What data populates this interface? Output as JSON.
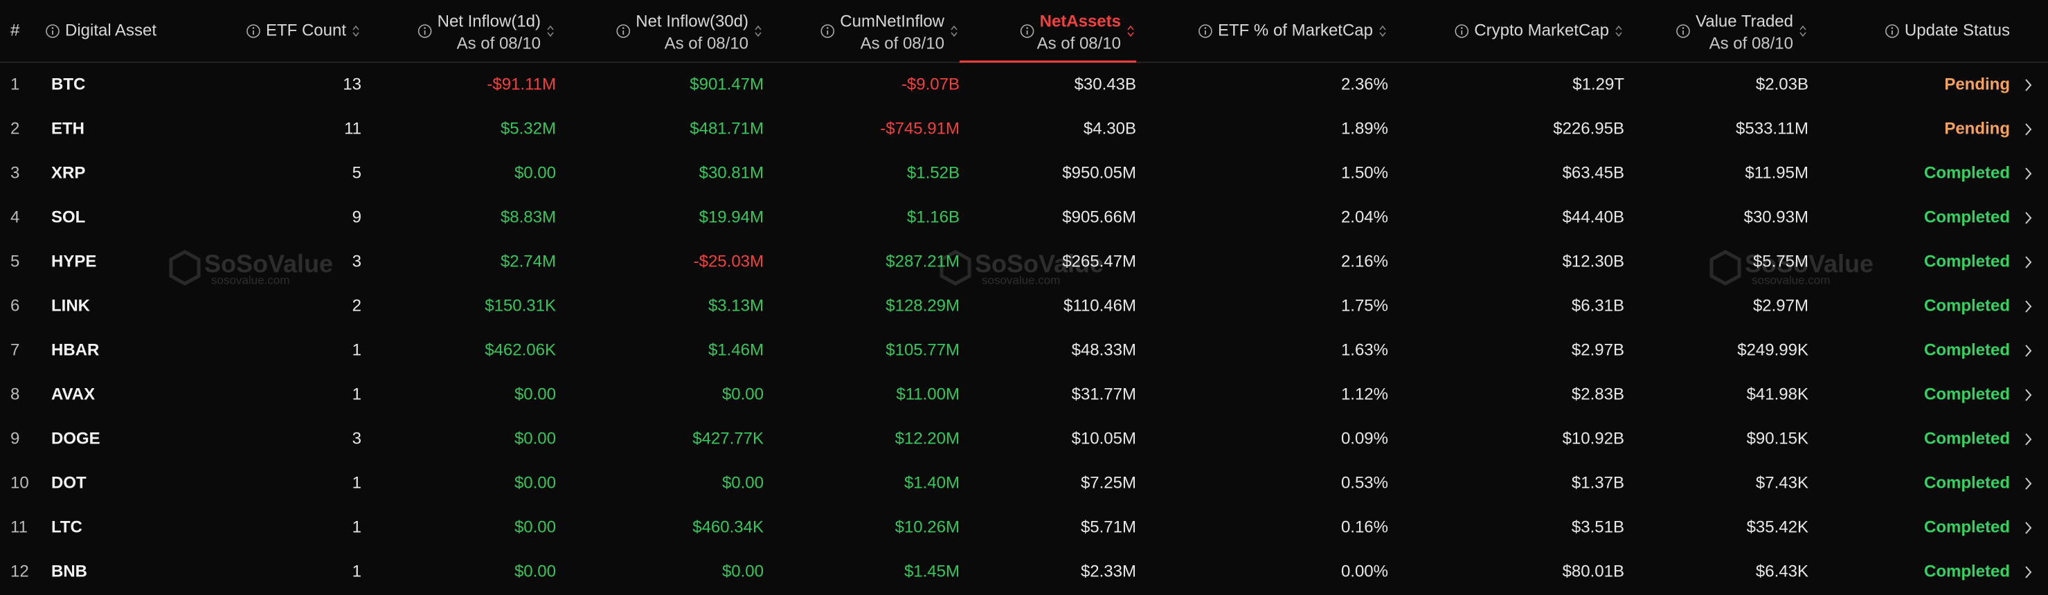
{
  "watermark": {
    "name": "SoSoValue",
    "url": "sosovalue.com"
  },
  "status_colors": {
    "Pending": "#f5a25d",
    "Completed": "#34d35f"
  },
  "table": {
    "headers": [
      {
        "title": "#"
      },
      {
        "title": "Digital Asset"
      },
      {
        "title": "ETF Count"
      },
      {
        "title": "Net Inflow(1d)",
        "subtitle": "As of 08/10"
      },
      {
        "title": "Net Inflow(30d)",
        "subtitle": "As of 08/10"
      },
      {
        "title": "CumNetInflow",
        "subtitle": "As of 08/10"
      },
      {
        "title": "NetAssets",
        "subtitle": "As of 08/10"
      },
      {
        "title": "ETF % of MarketCap"
      },
      {
        "title": "Crypto MarketCap"
      },
      {
        "title": "Value Traded",
        "subtitle": "As of 08/10"
      },
      {
        "title": "Update Status"
      }
    ],
    "rows": [
      [
        1,
        "BTC",
        13,
        "-$91.11M",
        "$901.47M",
        "-$9.07B",
        "$30.43B",
        "2.36%",
        "$1.29T",
        "$2.03B",
        "Pending"
      ],
      [
        2,
        "ETH",
        11,
        "$5.32M",
        "$481.71M",
        "-$745.91M",
        "$4.30B",
        "1.89%",
        "$226.95B",
        "$533.11M",
        "Pending"
      ],
      [
        3,
        "XRP",
        5,
        "$0.00",
        "$30.81M",
        "$1.52B",
        "$950.05M",
        "1.50%",
        "$63.45B",
        "$11.95M",
        "Completed"
      ],
      [
        4,
        "SOL",
        9,
        "$8.83M",
        "$19.94M",
        "$1.16B",
        "$905.66M",
        "2.04%",
        "$44.40B",
        "$30.93M",
        "Completed"
      ],
      [
        5,
        "HYPE",
        3,
        "$2.74M",
        "-$25.03M",
        "$287.21M",
        "$265.47M",
        "2.16%",
        "$12.30B",
        "$5.75M",
        "Completed"
      ],
      [
        6,
        "LINK",
        2,
        "$150.31K",
        "$3.13M",
        "$128.29M",
        "$110.46M",
        "1.75%",
        "$6.31B",
        "$2.97M",
        "Completed"
      ],
      [
        7,
        "HBAR",
        1,
        "$462.06K",
        "$1.46M",
        "$105.77M",
        "$48.33M",
        "1.63%",
        "$2.97B",
        "$249.99K",
        "Completed"
      ],
      [
        8,
        "AVAX",
        1,
        "$0.00",
        "$0.00",
        "$11.00M",
        "$31.77M",
        "1.12%",
        "$2.83B",
        "$41.98K",
        "Completed"
      ],
      [
        9,
        "DOGE",
        3,
        "$0.00",
        "$427.77K",
        "$12.20M",
        "$10.05M",
        "0.09%",
        "$10.92B",
        "$90.15K",
        "Completed"
      ],
      [
        10,
        "DOT",
        1,
        "$0.00",
        "$0.00",
        "$1.40M",
        "$7.25M",
        "0.53%",
        "$1.37B",
        "$7.43K",
        "Completed"
      ],
      [
        11,
        "LTC",
        1,
        "$0.00",
        "$460.34K",
        "$10.26M",
        "$5.71M",
        "0.16%",
        "$3.51B",
        "$35.42K",
        "Completed"
      ],
      [
        12,
        "BNB",
        1,
        "$0.00",
        "$0.00",
        "$1.45M",
        "$2.33M",
        "0.00%",
        "$80.01B",
        "$6.43K",
        "Completed"
      ]
    ]
  }
}
